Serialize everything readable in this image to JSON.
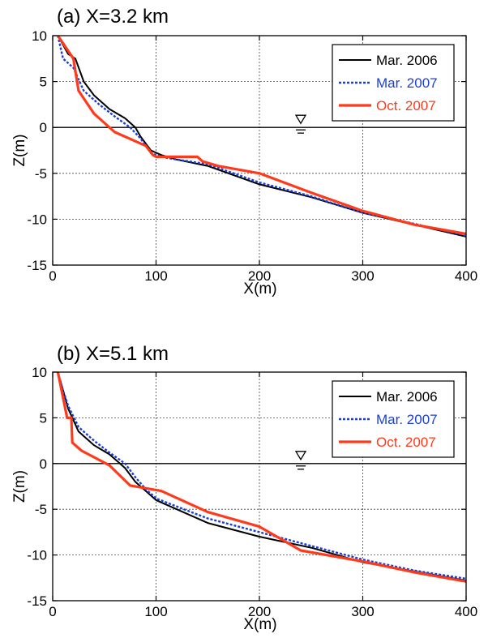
{
  "chart_data": [
    {
      "type": "line",
      "title": "(a) X=3.2 km",
      "xlabel": "X(m)",
      "ylabel": "Z(m)",
      "xlim": [
        0,
        400
      ],
      "ylim": [
        -15,
        10
      ],
      "xticks": [
        0,
        100,
        200,
        300,
        400
      ],
      "yticks": [
        -15,
        -10,
        -5,
        0,
        5,
        10
      ],
      "grid": true,
      "legend_position": "top-right",
      "water_level": 0,
      "series": [
        {
          "name": "Mar. 2006",
          "color": "#000000",
          "style": "solid",
          "x": [
            5,
            15,
            22,
            30,
            40,
            55,
            70,
            80,
            85,
            95,
            105,
            120,
            150,
            200,
            250,
            300,
            350,
            400
          ],
          "y": [
            10,
            8,
            7.5,
            5,
            3.5,
            2,
            1,
            0,
            -1,
            -2.5,
            -3,
            -3.5,
            -4.2,
            -6.2,
            -7.6,
            -9.3,
            -10.6,
            -11.9
          ]
        },
        {
          "name": "Mar. 2007",
          "color": "#1a3fd6",
          "style": "dashed",
          "x": [
            5,
            10,
            20,
            30,
            45,
            60,
            75,
            85,
            95,
            105,
            120,
            150,
            200,
            250,
            300,
            350,
            400
          ],
          "y": [
            10,
            7.5,
            6.5,
            4,
            2.5,
            1.2,
            0,
            -1.2,
            -2.8,
            -3.2,
            -3.5,
            -4,
            -6,
            -7.5,
            -9.3,
            -10.5,
            -11.8
          ]
        },
        {
          "name": "Oct. 2007",
          "color": "#ff3a1a",
          "style": "solid-thick",
          "x": [
            5,
            20,
            25,
            40,
            60,
            80,
            90,
            97,
            100,
            110,
            140,
            145,
            160,
            200,
            250,
            300,
            350,
            400
          ],
          "y": [
            10,
            7.5,
            4,
            1.5,
            -0.5,
            -1.5,
            -2,
            -3,
            -3.2,
            -3.2,
            -3.2,
            -3.7,
            -4.2,
            -5,
            -7.1,
            -9.1,
            -10.6,
            -11.6
          ]
        }
      ]
    },
    {
      "type": "line",
      "title": "(b) X=5.1 km",
      "xlabel": "X(m)",
      "ylabel": "Z(m)",
      "xlim": [
        0,
        400
      ],
      "ylim": [
        -15,
        10
      ],
      "xticks": [
        0,
        100,
        200,
        300,
        400
      ],
      "yticks": [
        -15,
        -10,
        -5,
        0,
        5,
        10
      ],
      "grid": true,
      "legend_position": "top-right",
      "water_level": 0,
      "series": [
        {
          "name": "Mar. 2006",
          "color": "#000000",
          "style": "solid",
          "x": [
            5,
            10,
            15,
            25,
            40,
            55,
            70,
            80,
            90,
            100,
            120,
            150,
            200,
            250,
            300,
            350,
            400
          ],
          "y": [
            10,
            8,
            6,
            3.5,
            2,
            1,
            -0.5,
            -2,
            -3,
            -4,
            -5,
            -6.5,
            -8,
            -9.2,
            -10.8,
            -11.8,
            -12.8
          ]
        },
        {
          "name": "Mar. 2007",
          "color": "#1a3fd6",
          "style": "dashed",
          "x": [
            5,
            10,
            15,
            25,
            40,
            55,
            70,
            80,
            90,
            100,
            120,
            150,
            200,
            250,
            300,
            350,
            400
          ],
          "y": [
            10,
            8,
            6.3,
            4,
            2.5,
            1.2,
            0,
            -1.5,
            -2.8,
            -3.8,
            -4.7,
            -6,
            -7.5,
            -9,
            -10.5,
            -11.7,
            -12.6
          ]
        },
        {
          "name": "Oct. 2007",
          "color": "#ff3a1a",
          "style": "solid-thick",
          "x": [
            5,
            14,
            18,
            19,
            28,
            55,
            75,
            105,
            150,
            200,
            240,
            300,
            350,
            400
          ],
          "y": [
            10,
            5,
            5,
            2.3,
            1.4,
            -0.2,
            -2.4,
            -3,
            -5.3,
            -6.9,
            -9.5,
            -10.7,
            -11.9,
            -12.9
          ]
        }
      ]
    }
  ]
}
